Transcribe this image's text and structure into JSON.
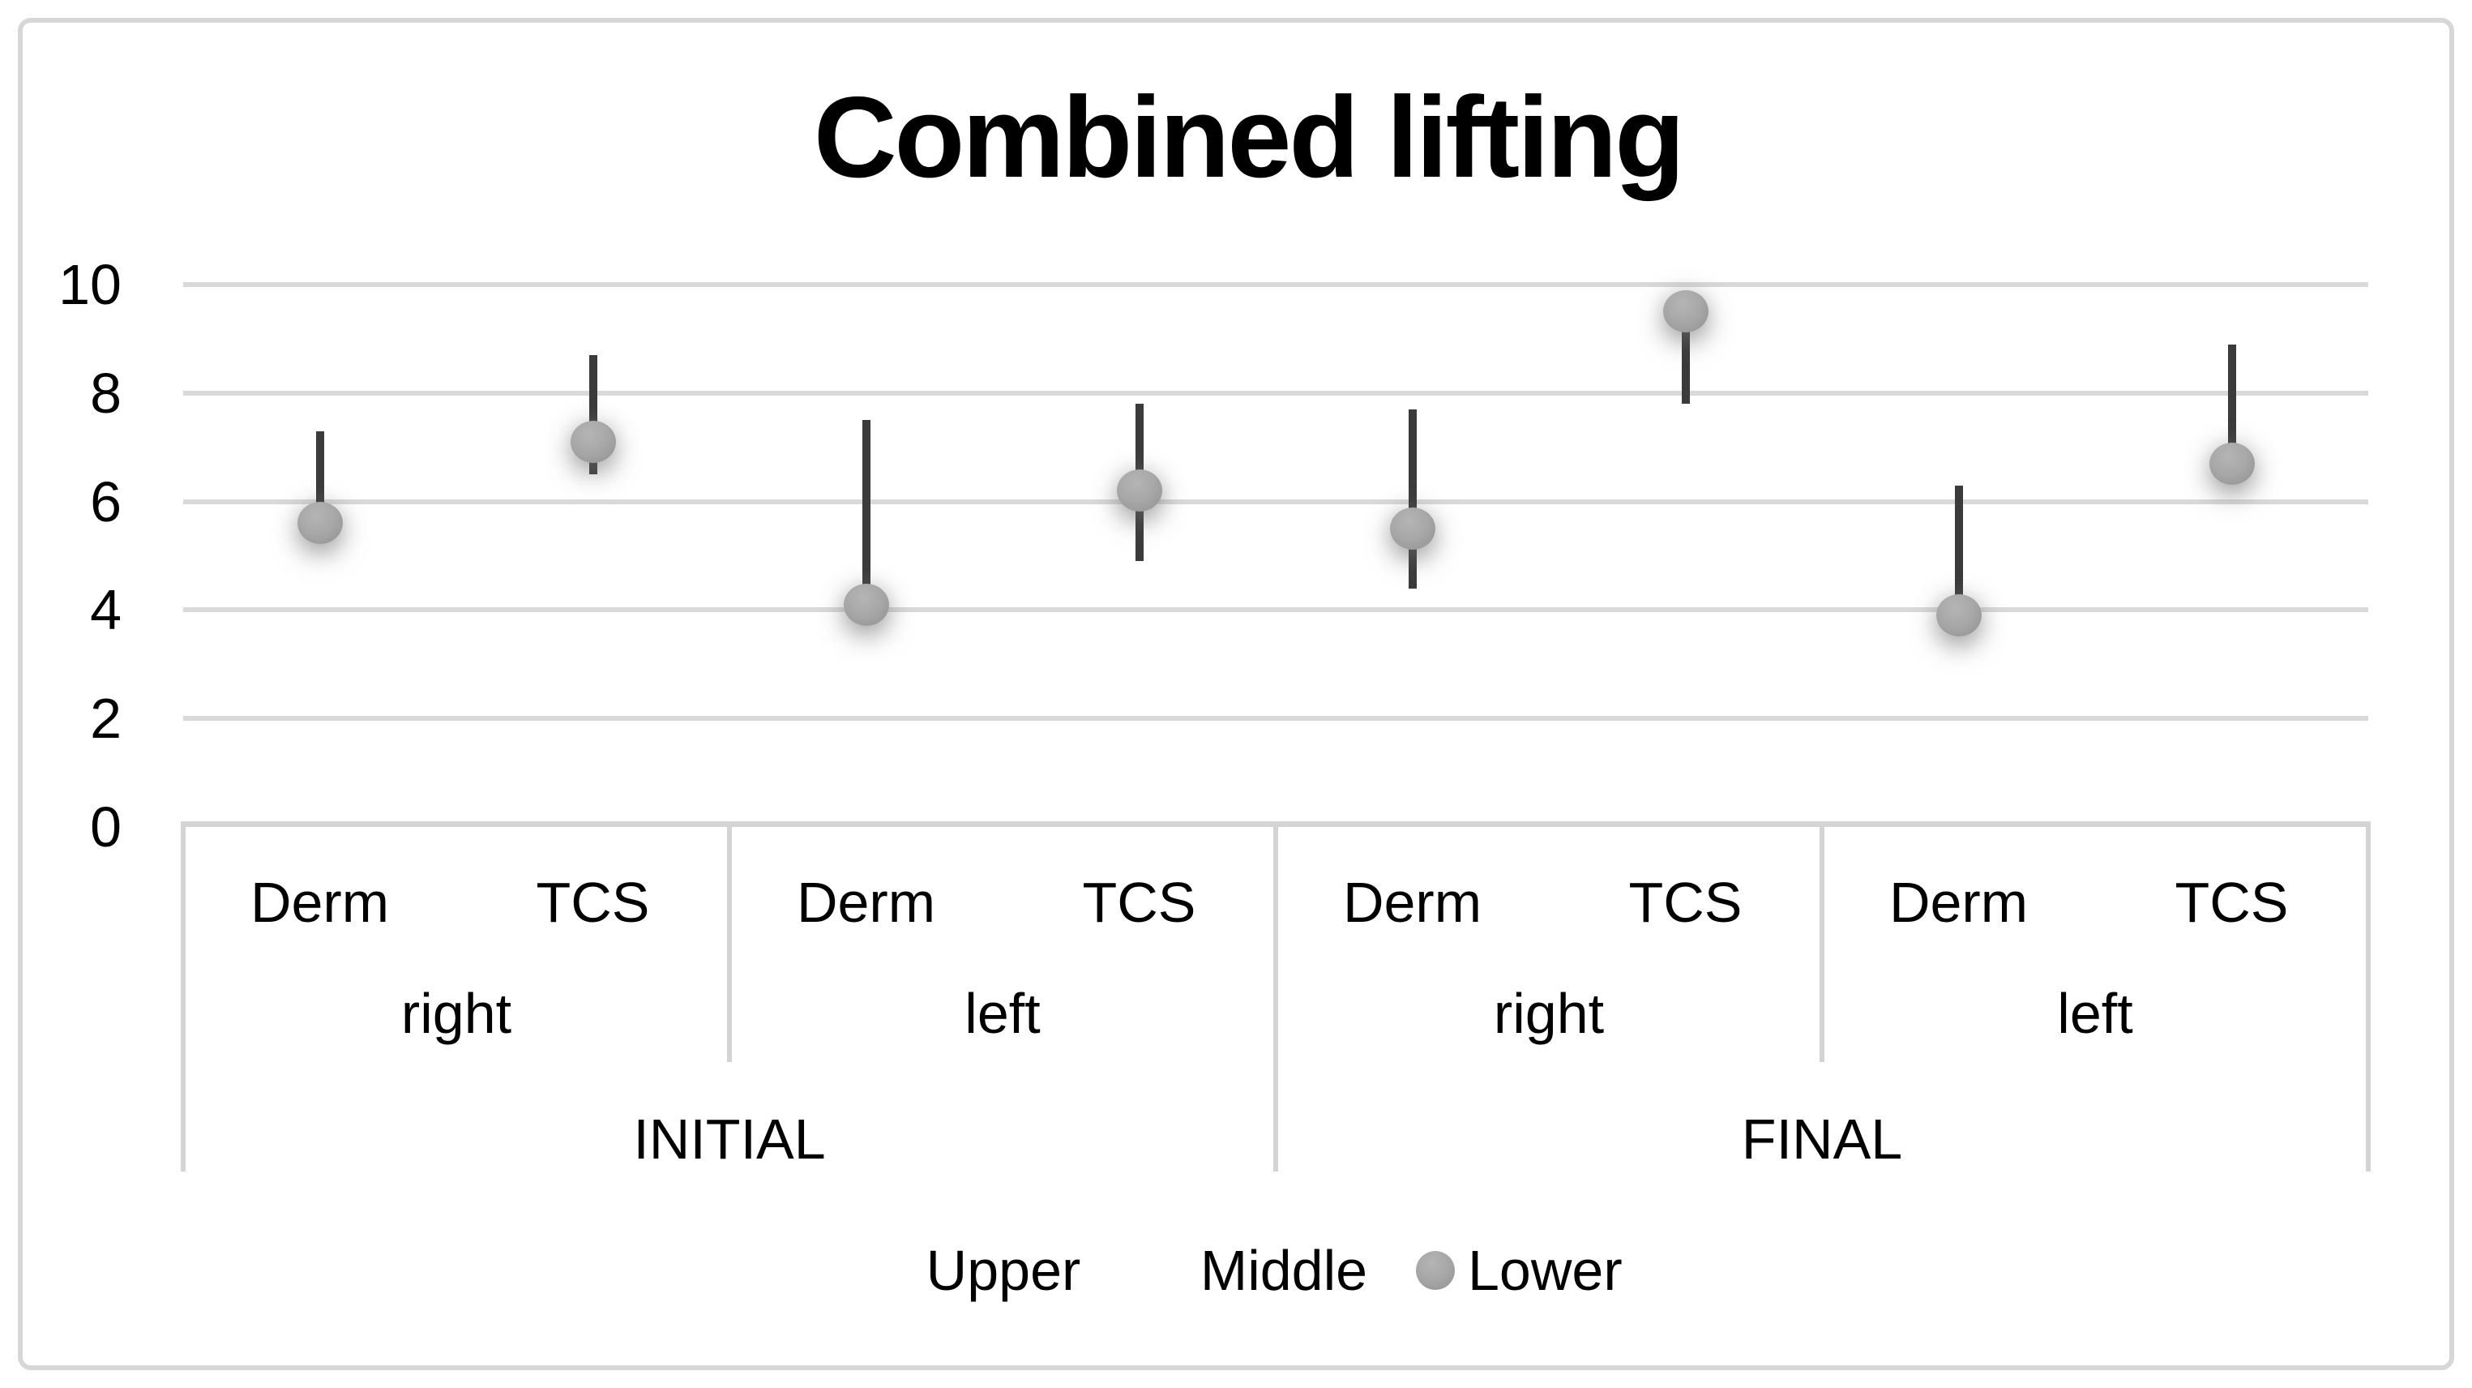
{
  "chart_data": {
    "type": "line",
    "subtype": "high-low-lines-with-lower-marker",
    "title": "Combined lifting",
    "ylim": [
      0,
      10
    ],
    "y_ticks": [
      "0",
      "2",
      "4",
      "6",
      "8",
      "10"
    ],
    "y_tick_values": [
      0,
      2,
      4,
      6,
      8,
      10
    ],
    "grid": true,
    "legend_position": "bottom",
    "group_levels": [
      {
        "span": 4,
        "labels": [
          "INITIAL",
          "FINAL"
        ]
      },
      {
        "span": 2,
        "labels": [
          "right",
          "left",
          "right",
          "left"
        ]
      },
      {
        "span": 1,
        "labels": [
          "Derm",
          "TCS",
          "Derm",
          "TCS",
          "Derm",
          "TCS",
          "Derm",
          "TCS"
        ]
      }
    ],
    "categories": [
      "INITIAL right Derm",
      "INITIAL right TCS",
      "INITIAL left Derm",
      "INITIAL left TCS",
      "FINAL right Derm",
      "FINAL right TCS",
      "FINAL left Derm",
      "FINAL left TCS"
    ],
    "series": [
      {
        "name": "Upper",
        "marker": "none",
        "values": [
          7.3,
          8.7,
          7.5,
          7.8,
          7.7,
          9.4,
          6.3,
          8.9
        ]
      },
      {
        "name": "Middle",
        "marker": "none",
        "values": [
          5.7,
          6.5,
          4.3,
          4.9,
          4.4,
          7.8,
          4.0,
          6.6
        ]
      },
      {
        "name": "Lower",
        "marker": "circle",
        "values": [
          5.6,
          7.1,
          4.1,
          6.2,
          5.5,
          9.5,
          3.9,
          6.7
        ]
      }
    ],
    "colors": {
      "hi_lo_line": "#3b3b3b",
      "marker_fill": "#a0a0a0",
      "gridline": "#d9d9d9",
      "border": "#d7d7d7",
      "text": "#000000",
      "background": "#ffffff"
    }
  }
}
